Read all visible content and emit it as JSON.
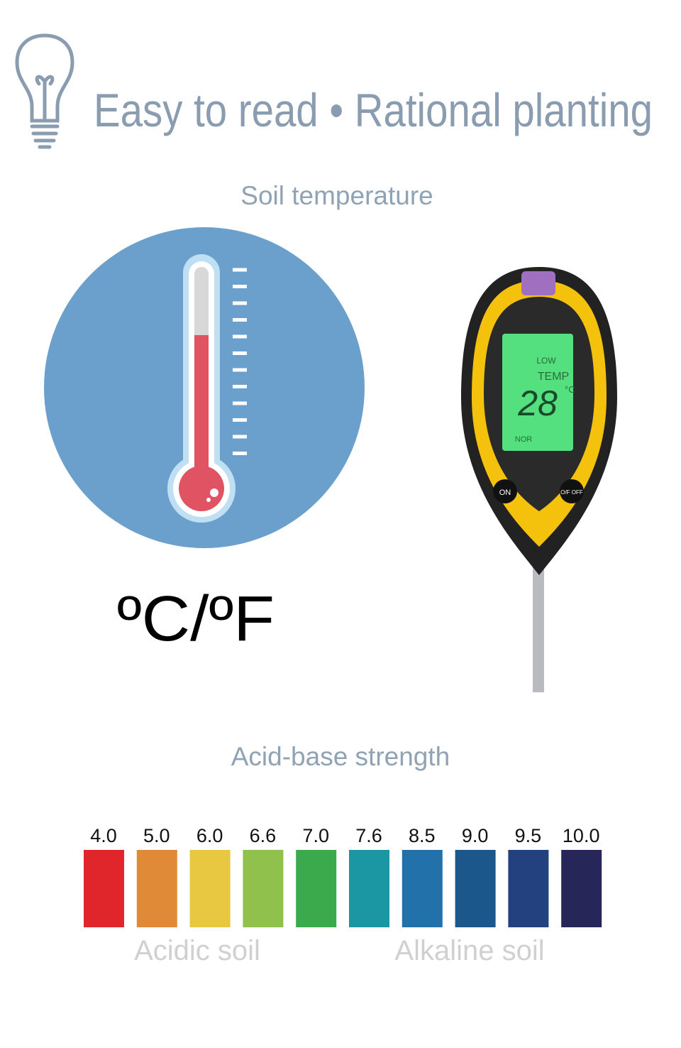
{
  "header": {
    "title": "Easy to read • Rational planting"
  },
  "temperature": {
    "title": "Soil temperature",
    "unit": "ºC/ºF",
    "meter": {
      "mode_top": "LOW",
      "mode": "TEMP",
      "reading": "28",
      "reading_unit": "°C",
      "mode_bottom": "NOR",
      "button_left": "ON",
      "button_right": "O/F OFF"
    }
  },
  "ph": {
    "title": "Acid-base strength",
    "levels": [
      {
        "label": "4.0",
        "color": "#e0262a"
      },
      {
        "label": "5.0",
        "color": "#e08a38"
      },
      {
        "label": "6.0",
        "color": "#e8c840"
      },
      {
        "label": "6.6",
        "color": "#8fc14c"
      },
      {
        "label": "7.0",
        "color": "#3aaa4c"
      },
      {
        "label": "7.6",
        "color": "#1b97a4"
      },
      {
        "label": "8.5",
        "color": "#2271ab"
      },
      {
        "label": "9.0",
        "color": "#1c578c"
      },
      {
        "label": "9.5",
        "color": "#24417f"
      },
      {
        "label": "10.0",
        "color": "#262659"
      }
    ],
    "acidic": "Acidic soil",
    "alkaline": "Alkaline soil"
  }
}
